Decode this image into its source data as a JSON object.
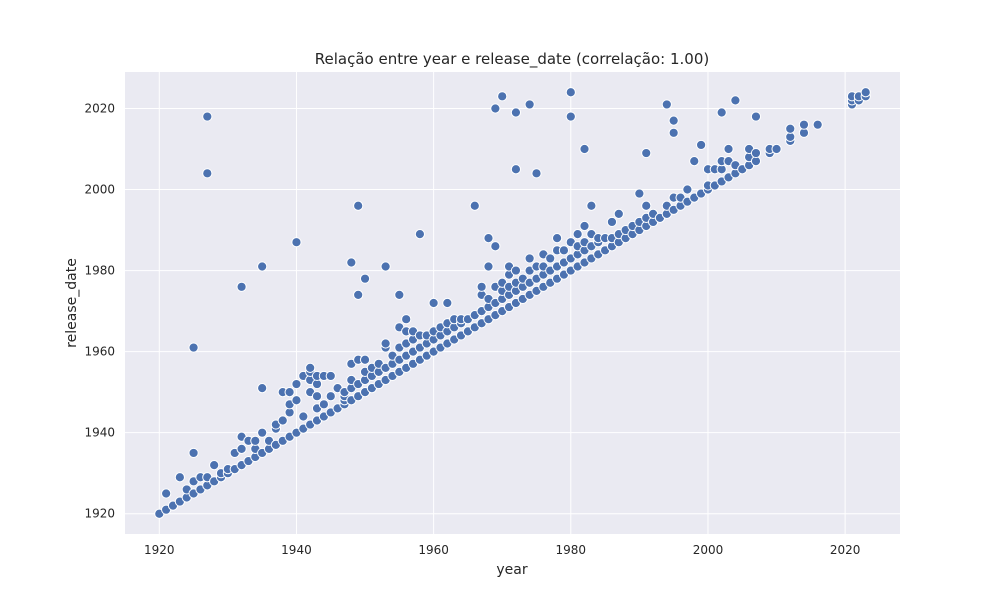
{
  "chart_data": {
    "type": "scatter",
    "title": "Relação entre year e release_date (correlação: 1.00)",
    "xlabel": "year",
    "ylabel": "release_date",
    "xlim": [
      1915,
      2028
    ],
    "ylim": [
      1915,
      2029
    ],
    "xticks": [
      1920,
      1940,
      1960,
      1980,
      2000,
      2020
    ],
    "yticks": [
      1920,
      1940,
      1960,
      1980,
      2000,
      2020
    ],
    "grid": true,
    "legend": "none",
    "point_color": "#4c72b0",
    "background_color": "#eaeaf2",
    "series": [
      {
        "points": [
          [
            1920,
            1920
          ],
          [
            1921,
            1921
          ],
          [
            1921,
            1925
          ],
          [
            1922,
            1922
          ],
          [
            1923,
            1923
          ],
          [
            1923,
            1929
          ],
          [
            1924,
            1924
          ],
          [
            1924,
            1926
          ],
          [
            1925,
            1925
          ],
          [
            1925,
            1928
          ],
          [
            1925,
            1935
          ],
          [
            1925,
            1961
          ],
          [
            1926,
            1926
          ],
          [
            1926,
            1929
          ],
          [
            1927,
            1927
          ],
          [
            1927,
            1929
          ],
          [
            1927,
            2004
          ],
          [
            1927,
            2018
          ],
          [
            1928,
            1928
          ],
          [
            1928,
            1932
          ],
          [
            1929,
            1929
          ],
          [
            1929,
            1930
          ],
          [
            1930,
            1930
          ],
          [
            1930,
            1931
          ],
          [
            1931,
            1931
          ],
          [
            1931,
            1935
          ],
          [
            1932,
            1932
          ],
          [
            1932,
            1936
          ],
          [
            1932,
            1939
          ],
          [
            1932,
            1976
          ],
          [
            1933,
            1933
          ],
          [
            1933,
            1938
          ],
          [
            1934,
            1934
          ],
          [
            1934,
            1936
          ],
          [
            1934,
            1938
          ],
          [
            1935,
            1935
          ],
          [
            1935,
            1940
          ],
          [
            1935,
            1951
          ],
          [
            1935,
            1981
          ],
          [
            1936,
            1936
          ],
          [
            1936,
            1938
          ],
          [
            1937,
            1937
          ],
          [
            1937,
            1941
          ],
          [
            1937,
            1942
          ],
          [
            1938,
            1938
          ],
          [
            1938,
            1943
          ],
          [
            1938,
            1950
          ],
          [
            1939,
            1939
          ],
          [
            1939,
            1945
          ],
          [
            1939,
            1947
          ],
          [
            1939,
            1950
          ],
          [
            1940,
            1940
          ],
          [
            1940,
            1948
          ],
          [
            1940,
            1952
          ],
          [
            1940,
            1987
          ],
          [
            1941,
            1941
          ],
          [
            1941,
            1944
          ],
          [
            1941,
            1954
          ],
          [
            1942,
            1942
          ],
          [
            1942,
            1950
          ],
          [
            1942,
            1953
          ],
          [
            1942,
            1955
          ],
          [
            1942,
            1956
          ],
          [
            1943,
            1943
          ],
          [
            1943,
            1946
          ],
          [
            1943,
            1949
          ],
          [
            1943,
            1952
          ],
          [
            1943,
            1954
          ],
          [
            1944,
            1944
          ],
          [
            1944,
            1947
          ],
          [
            1944,
            1954
          ],
          [
            1945,
            1945
          ],
          [
            1945,
            1949
          ],
          [
            1945,
            1954
          ],
          [
            1946,
            1946
          ],
          [
            1946,
            1951
          ],
          [
            1947,
            1947
          ],
          [
            1947,
            1948
          ],
          [
            1947,
            1949
          ],
          [
            1947,
            1950
          ],
          [
            1948,
            1948
          ],
          [
            1948,
            1951
          ],
          [
            1948,
            1953
          ],
          [
            1948,
            1957
          ],
          [
            1948,
            1982
          ],
          [
            1949,
            1949
          ],
          [
            1949,
            1952
          ],
          [
            1949,
            1958
          ],
          [
            1949,
            1974
          ],
          [
            1949,
            1996
          ],
          [
            1950,
            1950
          ],
          [
            1950,
            1953
          ],
          [
            1950,
            1955
          ],
          [
            1950,
            1958
          ],
          [
            1950,
            1978
          ],
          [
            1951,
            1951
          ],
          [
            1951,
            1954
          ],
          [
            1951,
            1956
          ],
          [
            1952,
            1952
          ],
          [
            1952,
            1955
          ],
          [
            1952,
            1957
          ],
          [
            1953,
            1953
          ],
          [
            1953,
            1956
          ],
          [
            1953,
            1961
          ],
          [
            1953,
            1962
          ],
          [
            1953,
            1981
          ],
          [
            1954,
            1954
          ],
          [
            1954,
            1957
          ],
          [
            1954,
            1959
          ],
          [
            1955,
            1955
          ],
          [
            1955,
            1958
          ],
          [
            1955,
            1961
          ],
          [
            1955,
            1966
          ],
          [
            1955,
            1974
          ],
          [
            1956,
            1956
          ],
          [
            1956,
            1959
          ],
          [
            1956,
            1962
          ],
          [
            1956,
            1965
          ],
          [
            1956,
            1968
          ],
          [
            1957,
            1957
          ],
          [
            1957,
            1960
          ],
          [
            1957,
            1963
          ],
          [
            1957,
            1965
          ],
          [
            1958,
            1958
          ],
          [
            1958,
            1961
          ],
          [
            1958,
            1964
          ],
          [
            1958,
            1989
          ],
          [
            1959,
            1959
          ],
          [
            1959,
            1962
          ],
          [
            1959,
            1964
          ],
          [
            1960,
            1960
          ],
          [
            1960,
            1963
          ],
          [
            1960,
            1965
          ],
          [
            1960,
            1972
          ],
          [
            1961,
            1961
          ],
          [
            1961,
            1964
          ],
          [
            1961,
            1966
          ],
          [
            1962,
            1962
          ],
          [
            1962,
            1965
          ],
          [
            1962,
            1967
          ],
          [
            1962,
            1972
          ],
          [
            1963,
            1963
          ],
          [
            1963,
            1966
          ],
          [
            1963,
            1968
          ],
          [
            1964,
            1964
          ],
          [
            1964,
            1967
          ],
          [
            1964,
            1968
          ],
          [
            1965,
            1965
          ],
          [
            1965,
            1968
          ],
          [
            1966,
            1966
          ],
          [
            1966,
            1969
          ],
          [
            1966,
            1996
          ],
          [
            1967,
            1967
          ],
          [
            1967,
            1970
          ],
          [
            1967,
            1974
          ],
          [
            1967,
            1976
          ],
          [
            1968,
            1968
          ],
          [
            1968,
            1971
          ],
          [
            1968,
            1973
          ],
          [
            1968,
            1981
          ],
          [
            1968,
            1988
          ],
          [
            1969,
            1969
          ],
          [
            1969,
            1972
          ],
          [
            1969,
            1976
          ],
          [
            1969,
            1986
          ],
          [
            1969,
            2020
          ],
          [
            1970,
            1970
          ],
          [
            1970,
            1973
          ],
          [
            1970,
            1975
          ],
          [
            1970,
            1977
          ],
          [
            1970,
            2023
          ],
          [
            1971,
            1971
          ],
          [
            1971,
            1974
          ],
          [
            1971,
            1976
          ],
          [
            1971,
            1979
          ],
          [
            1971,
            1981
          ],
          [
            1972,
            1972
          ],
          [
            1972,
            1975
          ],
          [
            1972,
            1977
          ],
          [
            1972,
            1980
          ],
          [
            1972,
            2005
          ],
          [
            1972,
            2019
          ],
          [
            1973,
            1973
          ],
          [
            1973,
            1976
          ],
          [
            1973,
            1978
          ],
          [
            1974,
            1974
          ],
          [
            1974,
            1977
          ],
          [
            1974,
            1980
          ],
          [
            1974,
            1983
          ],
          [
            1974,
            2021
          ],
          [
            1975,
            1975
          ],
          [
            1975,
            1978
          ],
          [
            1975,
            1981
          ],
          [
            1975,
            2004
          ],
          [
            1976,
            1976
          ],
          [
            1976,
            1979
          ],
          [
            1976,
            1981
          ],
          [
            1976,
            1984
          ],
          [
            1977,
            1977
          ],
          [
            1977,
            1980
          ],
          [
            1977,
            1983
          ],
          [
            1978,
            1978
          ],
          [
            1978,
            1981
          ],
          [
            1978,
            1985
          ],
          [
            1978,
            1988
          ],
          [
            1979,
            1979
          ],
          [
            1979,
            1982
          ],
          [
            1979,
            1985
          ],
          [
            1980,
            1980
          ],
          [
            1980,
            1983
          ],
          [
            1980,
            1987
          ],
          [
            1980,
            2018
          ],
          [
            1980,
            2024
          ],
          [
            1981,
            1981
          ],
          [
            1981,
            1984
          ],
          [
            1981,
            1986
          ],
          [
            1981,
            1989
          ],
          [
            1982,
            1982
          ],
          [
            1982,
            1985
          ],
          [
            1982,
            1987
          ],
          [
            1982,
            1991
          ],
          [
            1982,
            2010
          ],
          [
            1983,
            1983
          ],
          [
            1983,
            1986
          ],
          [
            1983,
            1989
          ],
          [
            1983,
            1996
          ],
          [
            1984,
            1984
          ],
          [
            1984,
            1987
          ],
          [
            1984,
            1988
          ],
          [
            1985,
            1985
          ],
          [
            1985,
            1988
          ],
          [
            1986,
            1986
          ],
          [
            1986,
            1988
          ],
          [
            1986,
            1992
          ],
          [
            1987,
            1987
          ],
          [
            1987,
            1989
          ],
          [
            1987,
            1994
          ],
          [
            1988,
            1988
          ],
          [
            1988,
            1990
          ],
          [
            1989,
            1989
          ],
          [
            1989,
            1991
          ],
          [
            1990,
            1990
          ],
          [
            1990,
            1992
          ],
          [
            1990,
            1999
          ],
          [
            1991,
            1991
          ],
          [
            1991,
            1993
          ],
          [
            1991,
            1996
          ],
          [
            1991,
            2009
          ],
          [
            1992,
            1992
          ],
          [
            1992,
            1994
          ],
          [
            1993,
            1993
          ],
          [
            1994,
            1994
          ],
          [
            1994,
            1996
          ],
          [
            1994,
            2021
          ],
          [
            1995,
            1995
          ],
          [
            1995,
            1998
          ],
          [
            1995,
            2014
          ],
          [
            1995,
            2017
          ],
          [
            1996,
            1996
          ],
          [
            1996,
            1998
          ],
          [
            1997,
            1997
          ],
          [
            1997,
            2000
          ],
          [
            1998,
            1998
          ],
          [
            1998,
            2007
          ],
          [
            1999,
            1999
          ],
          [
            1999,
            2011
          ],
          [
            2000,
            2000
          ],
          [
            2000,
            2001
          ],
          [
            2000,
            2005
          ],
          [
            2001,
            2001
          ],
          [
            2001,
            2005
          ],
          [
            2002,
            2002
          ],
          [
            2002,
            2005
          ],
          [
            2002,
            2007
          ],
          [
            2002,
            2019
          ],
          [
            2003,
            2003
          ],
          [
            2003,
            2007
          ],
          [
            2003,
            2010
          ],
          [
            2004,
            2004
          ],
          [
            2004,
            2006
          ],
          [
            2004,
            2022
          ],
          [
            2005,
            2005
          ],
          [
            2006,
            2006
          ],
          [
            2006,
            2008
          ],
          [
            2006,
            2010
          ],
          [
            2007,
            2007
          ],
          [
            2007,
            2009
          ],
          [
            2007,
            2018
          ],
          [
            2009,
            2009
          ],
          [
            2009,
            2010
          ],
          [
            2010,
            2010
          ],
          [
            2012,
            2012
          ],
          [
            2012,
            2013
          ],
          [
            2012,
            2015
          ],
          [
            2014,
            2014
          ],
          [
            2014,
            2016
          ],
          [
            2016,
            2016
          ],
          [
            2021,
            2021
          ],
          [
            2021,
            2022
          ],
          [
            2021,
            2023
          ],
          [
            2022,
            2022
          ],
          [
            2022,
            2023
          ],
          [
            2023,
            2023
          ],
          [
            2023,
            2024
          ]
        ]
      }
    ]
  }
}
